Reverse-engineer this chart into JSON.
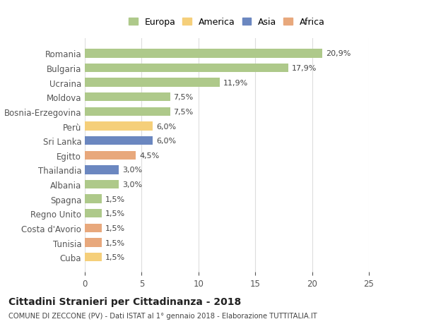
{
  "countries": [
    "Romania",
    "Bulgaria",
    "Ucraina",
    "Moldova",
    "Bosnia-Erzegovina",
    "Perù",
    "Sri Lanka",
    "Egitto",
    "Thailandia",
    "Albania",
    "Spagna",
    "Regno Unito",
    "Costa d'Avorio",
    "Tunisia",
    "Cuba"
  ],
  "values": [
    20.9,
    17.9,
    11.9,
    7.5,
    7.5,
    6.0,
    6.0,
    4.5,
    3.0,
    3.0,
    1.5,
    1.5,
    1.5,
    1.5,
    1.5
  ],
  "labels": [
    "20,9%",
    "17,9%",
    "11,9%",
    "7,5%",
    "7,5%",
    "6,0%",
    "6,0%",
    "4,5%",
    "3,0%",
    "3,0%",
    "1,5%",
    "1,5%",
    "1,5%",
    "1,5%",
    "1,5%"
  ],
  "continents": [
    "Europa",
    "Europa",
    "Europa",
    "Europa",
    "Europa",
    "America",
    "Asia",
    "Africa",
    "Asia",
    "Europa",
    "Europa",
    "Europa",
    "Africa",
    "Africa",
    "America"
  ],
  "colors": {
    "Europa": "#aec98a",
    "America": "#f5cf7a",
    "Asia": "#6b87c0",
    "Africa": "#e8a87c"
  },
  "legend_order": [
    "Europa",
    "America",
    "Asia",
    "Africa"
  ],
  "xlim": [
    0,
    25
  ],
  "xticks": [
    0,
    5,
    10,
    15,
    20,
    25
  ],
  "title": "Cittadini Stranieri per Cittadinanza - 2018",
  "subtitle": "COMUNE DI ZECCONE (PV) - Dati ISTAT al 1° gennaio 2018 - Elaborazione TUTTITALIA.IT",
  "background_color": "#ffffff",
  "grid_color": "#dddddd"
}
